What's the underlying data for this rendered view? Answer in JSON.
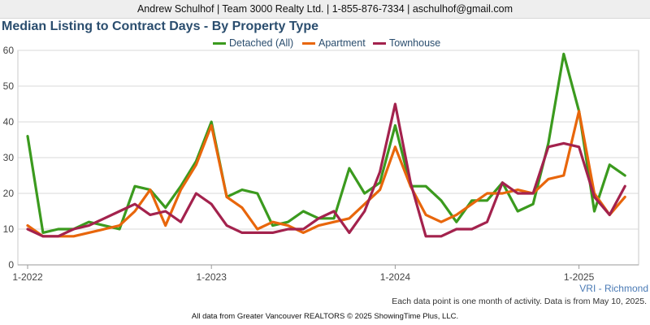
{
  "header": {
    "contact": "Andrew Schulhof | Team 3000 Realty Ltd. | 1-855-876-7334 | aschulhof@gmail.com"
  },
  "chart_data": {
    "type": "line",
    "title": "Median Listing to Contract Days - By Property Type",
    "xlabel": "",
    "ylabel": "",
    "ylim": [
      0,
      60
    ],
    "yticks": [
      0,
      10,
      20,
      30,
      40,
      50,
      60
    ],
    "xticks": [
      {
        "label": "1-2022",
        "index": 0
      },
      {
        "label": "1-2023",
        "index": 12
      },
      {
        "label": "1-2024",
        "index": 24
      },
      {
        "label": "1-2025",
        "index": 36
      }
    ],
    "grid": true,
    "legend_position": "top-center",
    "series": [
      {
        "name": "Detached (All)",
        "color": "#3b9a1e",
        "values": [
          36,
          9,
          10,
          10,
          12,
          11,
          10,
          22,
          21,
          16,
          22,
          29,
          40,
          19,
          21,
          20,
          11,
          12,
          15,
          13,
          13,
          27,
          20,
          23,
          39,
          22,
          22,
          18,
          12,
          18,
          18,
          23,
          15,
          17,
          34,
          59,
          43,
          15,
          28,
          25
        ]
      },
      {
        "name": "Apartment",
        "color": "#e8660b",
        "values": [
          11,
          8,
          8,
          8,
          9,
          10,
          11,
          15,
          21,
          11,
          21,
          28,
          39,
          19,
          16,
          10,
          12,
          11,
          9,
          11,
          12,
          13,
          17,
          21,
          33,
          22,
          14,
          12,
          14,
          17,
          20,
          20,
          21,
          20,
          24,
          25,
          43,
          20,
          14,
          19
        ]
      },
      {
        "name": "Townhouse",
        "color": "#a3224d",
        "values": [
          10,
          8,
          8,
          10,
          11,
          13,
          15,
          17,
          14,
          15,
          12,
          20,
          17,
          11,
          9,
          9,
          9,
          10,
          10,
          13,
          15,
          9,
          15,
          26,
          45,
          23,
          8,
          8,
          10,
          10,
          12,
          23,
          20,
          20,
          33,
          34,
          33,
          19,
          14,
          22
        ]
      }
    ]
  },
  "region_label": "VRI - Richmond",
  "note": "Each data point is one month of activity. Data is from May 10, 2025.",
  "footer": "All data from Greater Vancouver REALTORS © 2025 ShowingTime Plus, LLC."
}
